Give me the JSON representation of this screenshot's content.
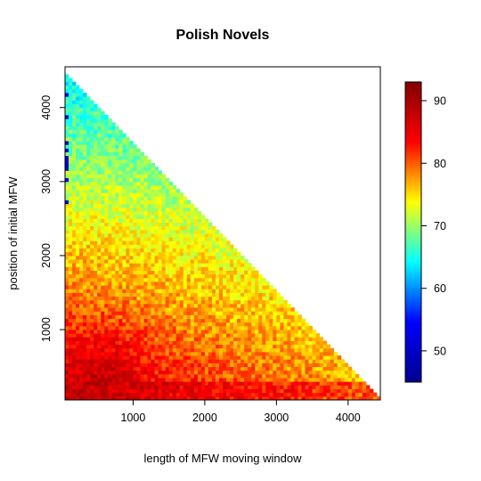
{
  "chart_data": {
    "type": "heatmap",
    "title": "Polish Novels",
    "xlabel": "length of MFW moving window",
    "ylabel": "position of initial MFW",
    "xlim": [
      50,
      4450
    ],
    "ylim": [
      50,
      4550
    ],
    "xticks": [
      1000,
      2000,
      3000,
      4000
    ],
    "yticks": [
      1000,
      2000,
      3000,
      4000
    ],
    "colorbar": {
      "min": 45,
      "max": 93,
      "ticks": [
        50,
        60,
        70,
        80,
        90
      ],
      "palette": [
        "#00008f",
        "#0000ff",
        "#00ffff",
        "#ffff00",
        "#ff0000",
        "#800000"
      ]
    },
    "grid": false,
    "cell_size": 50,
    "domain": "cells exist where x + y <= 4450",
    "surface": {
      "low_y_band_value": 88,
      "peak_value": 92,
      "peak_location": [
        600,
        450
      ],
      "top_left_value": 63,
      "bottom_right_value": 76,
      "left_edge_low_values": [
        47,
        53
      ],
      "noise_range": 3
    }
  }
}
